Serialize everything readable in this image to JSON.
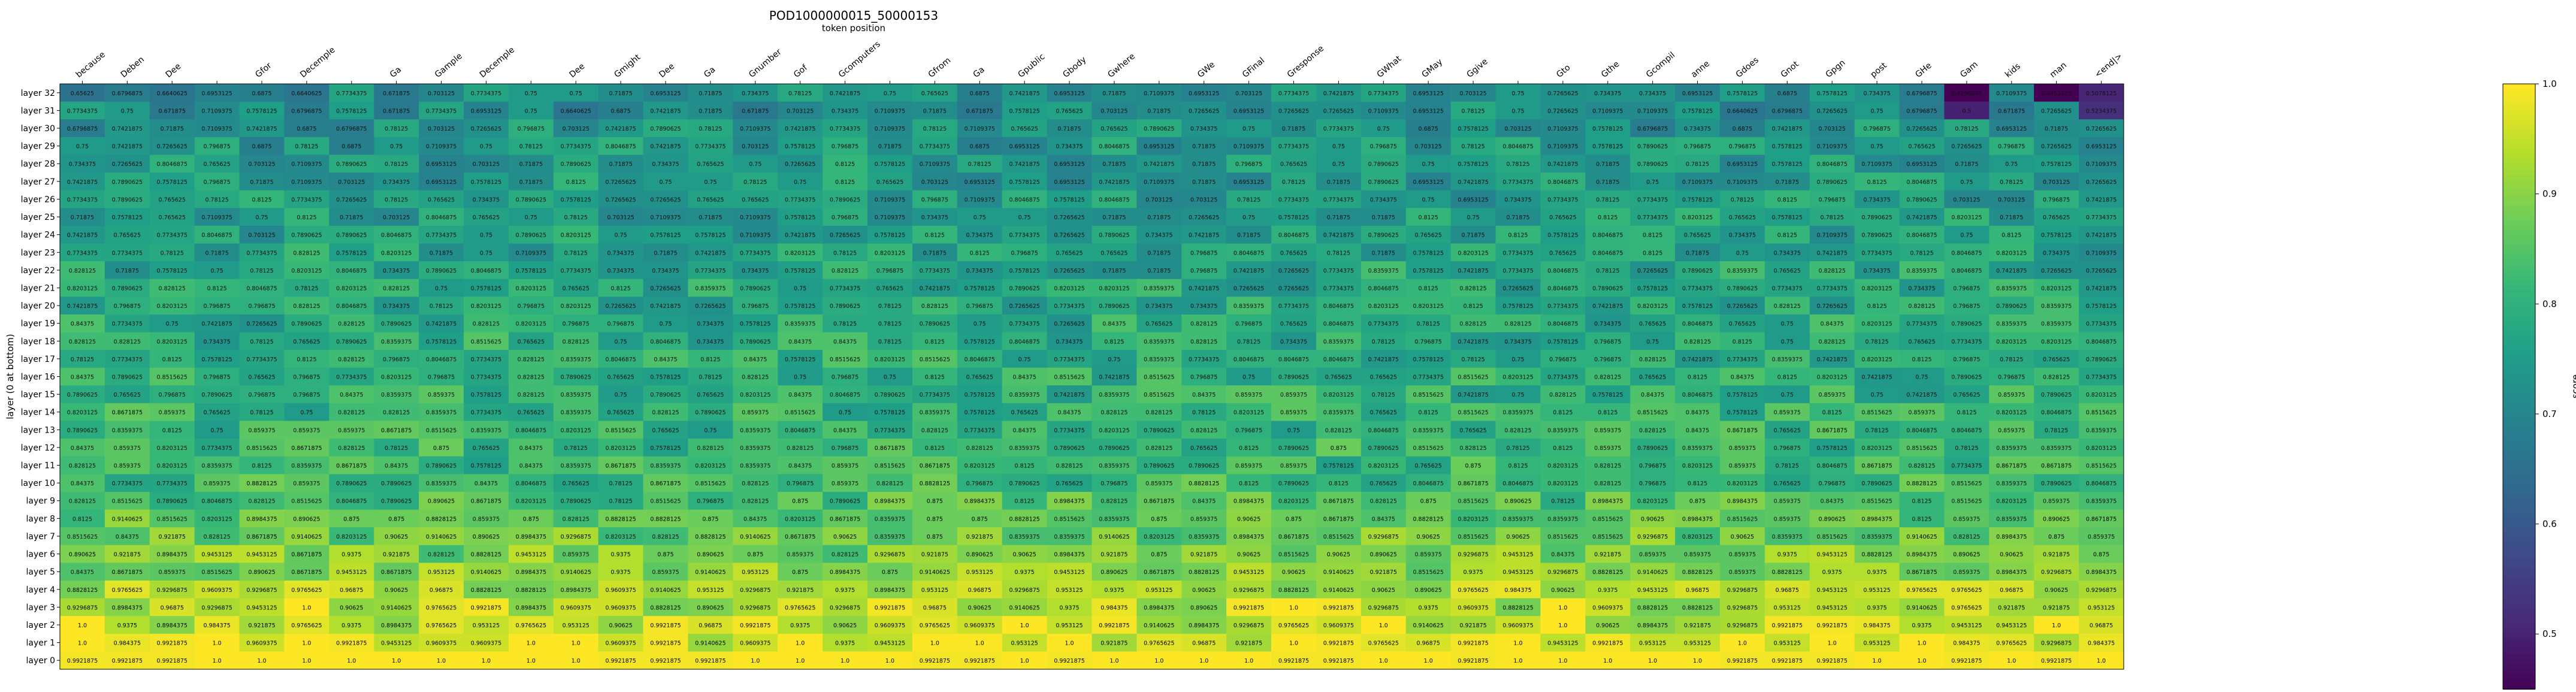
{
  "chart_data": {
    "type": "heatmap",
    "title": "POD1000000015_50000153",
    "xlabel": "token position",
    "ylabel": "layer (0 at bottom)",
    "colorbar_label": "score",
    "colormap": "viridis",
    "vmin": 0.45,
    "vmax": 1.0,
    "colorbar_ticks": [
      0.5,
      0.6,
      0.7,
      0.8,
      0.9,
      1.0
    ],
    "x_tokens": [
      "because",
      "Deben",
      "Dee",
      "",
      "Gfor",
      "Decemple",
      "",
      "Ga",
      "Gample",
      "Decemple",
      "",
      "Dee",
      "Gmight",
      "Dee",
      "Ga",
      "Gnumber",
      "Gof",
      "Gcomputers",
      "",
      "Gfrom",
      "Ga",
      "Gpublic",
      "Gbody",
      "Gwhere",
      "",
      "GWe",
      "GFinal",
      "Gresponse",
      "",
      "GWhat",
      "GMay",
      "Ggive",
      "",
      "Gto",
      "Gthe",
      "Gcompil",
      "anne",
      "Gdoes",
      "Gnot",
      "Gpgn",
      "post",
      "GHe",
      "Gam",
      "kids",
      "man",
      "<end|>"
    ],
    "y_labels": [
      "layer 32",
      "layer 31",
      "layer 30",
      "layer 29",
      "layer 28",
      "layer 27",
      "layer 26",
      "layer 25",
      "layer 24",
      "layer 23",
      "layer 22",
      "layer 21",
      "layer 20",
      "layer 19",
      "layer 18",
      "layer 17",
      "layer 16",
      "layer 15",
      "layer 14",
      "layer 13",
      "layer 12",
      "layer 11",
      "layer 10",
      "layer 9",
      "layer 8",
      "layer 7",
      "layer 6",
      "layer 5",
      "layer 4",
      "layer 3",
      "layer 2",
      "layer 1",
      "layer 0"
    ],
    "row_means": [
      0.72,
      0.72,
      0.735,
      0.745,
      0.75,
      0.75,
      0.755,
      0.76,
      0.765,
      0.77,
      0.775,
      0.78,
      0.78,
      0.785,
      0.79,
      0.79,
      0.795,
      0.8,
      0.805,
      0.81,
      0.815,
      0.82,
      0.825,
      0.84,
      0.86,
      0.875,
      0.89,
      0.905,
      0.925,
      0.94,
      0.955,
      0.975,
      0.995
    ],
    "sample_values": [
      "0.8359375",
      "0.84375",
      "0.8515625",
      "0.859375",
      "0.8671875",
      "0.875",
      "0.8828125",
      "0.890625",
      "0.8984375",
      "0.90625",
      "0.9140625",
      "0.921875",
      "0.9296875",
      "0.9375",
      "0.9453125",
      "0.953125",
      "0.9609375",
      "0.96875",
      "0.9765625",
      "0.984375",
      "0.9921875",
      "1.0"
    ],
    "annotations": [
      {
        "row": 0,
        "col": 42,
        "value": "0.4296875"
      },
      {
        "row": 0,
        "col": 44,
        "value": "0.4453125"
      },
      {
        "row": 1,
        "col": 42,
        "value": "0.5"
      }
    ],
    "last_col_values": [
      "0.5078125",
      "0.5234375",
      "0.7265625",
      "0.6953125",
      "0.7109375",
      "0.7265625",
      "0.7421875",
      "0.7734375",
      "0.7421875",
      "0.7109375",
      "0.7265625",
      "0.7421875",
      "0.7578125",
      "0.7734375",
      "0.8046875",
      "0.7890625",
      "0.7734375",
      "0.8203125",
      "0.8515625",
      "0.8359375",
      "0.8203125",
      "0.8515625",
      "0.8046875",
      "0.8359375",
      "0.8671875",
      "0.859375",
      "0.875",
      "0.8984375",
      "0.9296875",
      "0.953125",
      "0.96875",
      "0.984375",
      "1.0"
    ],
    "grid": false
  }
}
